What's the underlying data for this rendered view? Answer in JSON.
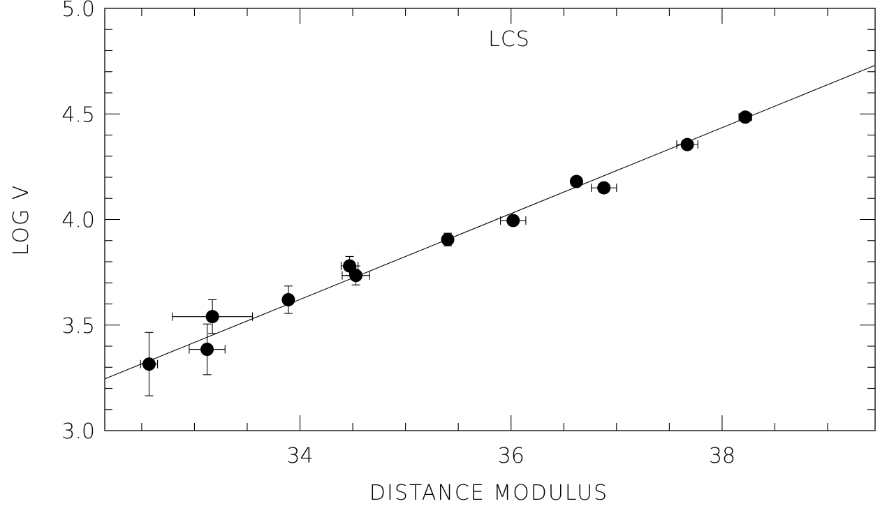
{
  "chart_data": {
    "type": "scatter",
    "title": "",
    "annotation": "LCS",
    "xlabel": "DISTANCE MODULUS",
    "ylabel": "LOG V",
    "xlim": [
      32.15,
      39.45
    ],
    "ylim": [
      3.0,
      5.0
    ],
    "x_major_ticks": [
      34,
      36,
      38
    ],
    "x_minor_step": 0.5,
    "y_major_ticks": [
      3.0,
      3.5,
      4.0,
      4.5,
      5.0
    ],
    "y_minor_step": 0.1,
    "x_tick_labels": [
      "34",
      "36",
      "38"
    ],
    "y_tick_labels": [
      "3.0",
      "3.5",
      "4.0",
      "4.5",
      "5.0"
    ],
    "grid": false,
    "points": [
      {
        "x": 32.57,
        "y": 3.315,
        "xerr": 0.08,
        "yerr": 0.15
      },
      {
        "x": 33.12,
        "y": 3.385,
        "xerr": 0.17,
        "yerr": 0.12
      },
      {
        "x": 33.17,
        "y": 3.54,
        "xerr": 0.38,
        "yerr": 0.08
      },
      {
        "x": 33.89,
        "y": 3.62,
        "xerr": 0.03,
        "yerr": 0.065
      },
      {
        "x": 34.47,
        "y": 3.78,
        "xerr": 0.08,
        "yerr": 0.045
      },
      {
        "x": 34.53,
        "y": 3.735,
        "xerr": 0.13,
        "yerr": 0.045
      },
      {
        "x": 35.4,
        "y": 3.905,
        "xerr": 0.03,
        "yerr": 0.03
      },
      {
        "x": 36.02,
        "y": 3.995,
        "xerr": 0.12,
        "yerr": 0.02
      },
      {
        "x": 36.62,
        "y": 4.18,
        "xerr": 0.03,
        "yerr": 0.015
      },
      {
        "x": 36.88,
        "y": 4.15,
        "xerr": 0.12,
        "yerr": 0.015
      },
      {
        "x": 37.67,
        "y": 4.355,
        "xerr": 0.1,
        "yerr": 0.015
      },
      {
        "x": 38.22,
        "y": 4.485,
        "xerr": 0.06,
        "yerr": 0.015
      }
    ],
    "fit_line": {
      "x": [
        32.15,
        39.45
      ],
      "y": [
        3.245,
        4.73
      ]
    }
  }
}
